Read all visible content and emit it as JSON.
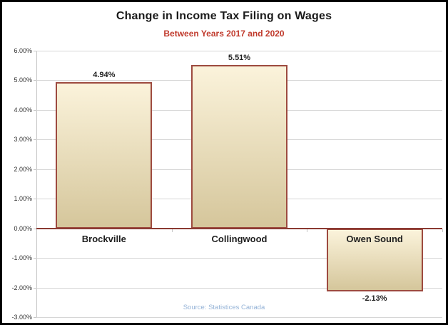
{
  "window": {
    "background": "#ffffff",
    "border_color": "#000000"
  },
  "header": {
    "title": "Change in Income Tax Filing on Wages",
    "subtitle": "Between Years 2017 and 2020",
    "title_color": "#1a1a1a",
    "subtitle_color": "#c0392b"
  },
  "footer": {
    "source_label": "Source: Statistices Canada",
    "source_color": "#95b3d7"
  },
  "chart_data": {
    "type": "bar",
    "title": "Change in Income Tax Filing on Wages",
    "subtitle": "Between Years 2017 and 2020",
    "categories": [
      "Brockville",
      "Collingwood",
      "Owen Sound"
    ],
    "values": [
      4.94,
      5.51,
      -2.13
    ],
    "value_labels": [
      "4.94%",
      "5.51%",
      "-2.13%"
    ],
    "ylabel": "",
    "xlabel": "",
    "ylim": [
      -3,
      6
    ],
    "ytick_step": 1,
    "ytick_labels": [
      "6.00%",
      "5.00%",
      "4.00%",
      "3.00%",
      "2.00%",
      "1.00%",
      "0.00%",
      "-1.00%",
      "-2.00%",
      "-3.00%"
    ],
    "grid": true,
    "legend": false,
    "source": "Source: Statistices Canada",
    "colors": {
      "bar_fill_top": "#fbf3db",
      "bar_fill_bottom": "#d5c69b",
      "bar_border": "#9d4a3f",
      "zero_line": "#8b3a32",
      "gridline": "#d6d6d6",
      "axis_line": "#c6c6c6",
      "tick_label": "#333333"
    }
  }
}
